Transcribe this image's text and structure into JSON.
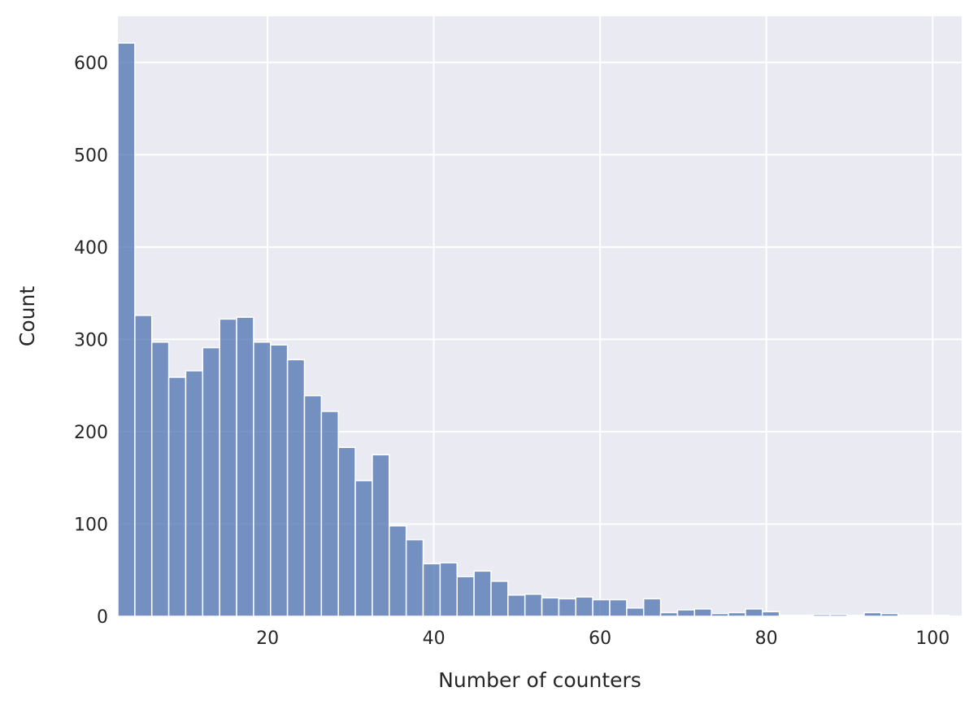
{
  "chart_data": {
    "type": "bar",
    "subtype": "histogram",
    "title": "",
    "xlabel": "Number of counters",
    "ylabel": "Count",
    "xlim": [
      2,
      103.5
    ],
    "ylim": [
      0,
      650
    ],
    "x_ticks": [
      20,
      40,
      60,
      80,
      100
    ],
    "y_ticks": [
      0,
      100,
      200,
      300,
      400,
      500,
      600
    ],
    "grid": true,
    "bar_color": "#4c72b0",
    "background_color": "#eaeaf2",
    "bin_width": 2.04,
    "bin_start": 2,
    "values": [
      621,
      326,
      297,
      259,
      266,
      291,
      322,
      324,
      297,
      294,
      278,
      239,
      222,
      183,
      147,
      175,
      98,
      83,
      57,
      58,
      43,
      49,
      38,
      23,
      24,
      20,
      19,
      21,
      18,
      18,
      9,
      19,
      4,
      7,
      8,
      3,
      4,
      8,
      5,
      1,
      1,
      2,
      2,
      1,
      4,
      3,
      1,
      1,
      1
    ]
  }
}
